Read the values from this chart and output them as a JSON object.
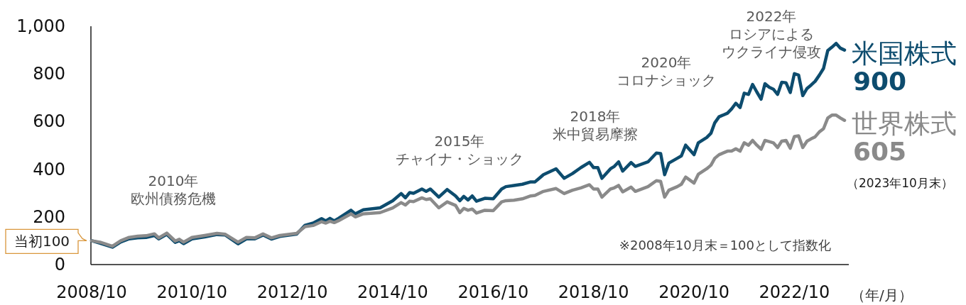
{
  "chart_data": {
    "type": "line",
    "xlabel": "（年/月）",
    "x": [
      "2008-10",
      "2008-12",
      "2009-03",
      "2009-05",
      "2009-07",
      "2009-09",
      "2009-11",
      "2010-01",
      "2010-02",
      "2010-04",
      "2010-06",
      "2010-07",
      "2010-08",
      "2010-10",
      "2011-01",
      "2011-04",
      "2011-06",
      "2011-09",
      "2011-11",
      "2012-01",
      "2012-03",
      "2012-05",
      "2012-07",
      "2012-11",
      "2013-01",
      "2013-03",
      "2013-05",
      "2013-06",
      "2013-07",
      "2013-08",
      "2013-09",
      "2013-12",
      "2014-01",
      "2014-03",
      "2014-07",
      "2014-10",
      "2014-12",
      "2015-01",
      "2015-02",
      "2015-03",
      "2015-05",
      "2015-06",
      "2015-07",
      "2015-09",
      "2015-11",
      "2016-01",
      "2016-02",
      "2016-03",
      "2016-04",
      "2016-05",
      "2016-06",
      "2016-08",
      "2016-10",
      "2016-12",
      "2017-01",
      "2017-03",
      "2017-05",
      "2017-07",
      "2017-08",
      "2017-10",
      "2018-01",
      "2018-03",
      "2018-05",
      "2018-07",
      "2018-09",
      "2018-10",
      "2018-11",
      "2018-12",
      "2019-02",
      "2019-03",
      "2019-04",
      "2019-05",
      "2019-07",
      "2019-08",
      "2019-11",
      "2020-01",
      "2020-02",
      "2020-03",
      "2020-04",
      "2020-06",
      "2020-07",
      "2020-08",
      "2020-10",
      "2020-11",
      "2021-01",
      "2021-02",
      "2021-03",
      "2021-04",
      "2021-06",
      "2021-07",
      "2021-08",
      "2021-09",
      "2021-10",
      "2021-11",
      "2021-12",
      "2022-01",
      "2022-02",
      "2022-03",
      "2022-04",
      "2022-05",
      "2022-06",
      "2022-07",
      "2022-08",
      "2022-09",
      "2022-10",
      "2022-11",
      "2022-12",
      "2023-01",
      "2023-02",
      "2023-03",
      "2023-04",
      "2023-05",
      "2023-06",
      "2023-07",
      "2023-08",
      "2023-09",
      "2023-10"
    ],
    "xlim": [
      "2008-10",
      "2023-11"
    ],
    "xticks": [
      {
        "value": "2008-10",
        "label": "2008/10"
      },
      {
        "value": "2010-10",
        "label": "2010/10"
      },
      {
        "value": "2012-10",
        "label": "2012/10"
      },
      {
        "value": "2014-10",
        "label": "2014/10"
      },
      {
        "value": "2016-10",
        "label": "2016/10"
      },
      {
        "value": "2018-10",
        "label": "2018/10"
      },
      {
        "value": "2020-10",
        "label": "2020/10"
      },
      {
        "value": "2022-10",
        "label": "2022/10"
      }
    ],
    "ylim": [
      0,
      1000
    ],
    "yticks": [
      0,
      200,
      400,
      600,
      800,
      {
        "value": 1000,
        "label": "1,000"
      }
    ],
    "series": [
      {
        "name": "米国株式",
        "color": "#0d4c6e",
        "values": [
          100,
          90,
          73,
          95,
          108,
          112,
          114,
          122,
          108,
          127,
          93,
          100,
          88,
          108,
          116,
          126,
          124,
          87,
          108,
          108,
          124,
          107,
          118,
          128,
          165,
          174,
          193,
          183,
          194,
          183,
          194,
          228,
          213,
          230,
          238,
          268,
          298,
          280,
          302,
          299,
          317,
          307,
          317,
          283,
          315,
          288,
          268,
          286,
          271,
          288,
          266,
          278,
          276,
          317,
          327,
          332,
          337,
          347,
          347,
          377,
          402,
          362,
          382,
          407,
          429,
          407,
          407,
          362,
          402,
          412,
          431,
          392,
          428,
          412,
          431,
          468,
          466,
          377,
          426,
          446,
          456,
          501,
          461,
          511,
          533,
          551,
          595,
          620,
          635,
          653,
          677,
          659,
          719,
          714,
          756,
          724,
          694,
          759,
          744,
          736,
          714,
          765,
          763,
          722,
          801,
          795,
          709,
          739,
          754,
          769,
          795,
          823,
          898,
          912,
          928,
          908,
          900
        ],
        "value_labels": [
          null,
          null,
          null,
          null,
          null,
          null,
          null,
          null,
          null,
          null,
          null,
          null,
          null,
          null,
          null,
          null,
          null,
          null,
          null,
          null,
          null,
          null,
          null,
          null,
          null,
          null,
          null,
          null,
          null,
          null,
          null,
          null,
          null,
          null,
          null,
          null,
          null,
          null,
          null,
          null,
          null,
          null,
          null,
          null,
          null,
          null,
          null,
          null,
          null,
          null,
          null,
          null,
          null,
          null,
          null,
          null,
          null,
          null,
          null,
          null,
          null,
          null,
          null,
          null,
          null,
          null,
          null,
          null,
          null,
          null,
          null,
          null,
          null,
          null,
          null,
          null,
          null,
          null,
          null,
          null,
          null,
          null,
          null,
          null,
          null,
          null,
          null,
          null,
          null,
          null,
          null,
          null,
          null,
          null,
          null,
          null,
          null,
          null,
          null,
          null,
          null,
          null,
          null,
          null,
          null,
          null,
          null,
          null,
          null,
          null,
          null,
          null,
          null,
          null,
          null,
          null,
          "900"
        ]
      },
      {
        "name": "世界株式",
        "color": "#8a8a8a",
        "values": [
          100,
          94,
          77,
          100,
          114,
          119,
          121,
          129,
          112,
          132,
          99,
          106,
          94,
          114,
          122,
          131,
          127,
          94,
          114,
          112,
          129,
          112,
          122,
          131,
          159,
          164,
          180,
          174,
          182,
          176,
          184,
          213,
          200,
          213,
          218,
          238,
          260,
          250,
          266,
          264,
          280,
          273,
          276,
          238,
          263,
          248,
          218,
          236,
          228,
          233,
          216,
          228,
          226,
          263,
          268,
          270,
          276,
          288,
          290,
          307,
          319,
          298,
          312,
          322,
          335,
          317,
          317,
          283,
          317,
          322,
          332,
          305,
          325,
          307,
          327,
          352,
          349,
          283,
          312,
          327,
          337,
          367,
          342,
          379,
          402,
          417,
          446,
          461,
          476,
          476,
          486,
          476,
          511,
          501,
          521,
          501,
          484,
          521,
          516,
          511,
          491,
          518,
          521,
          488,
          537,
          540,
          491,
          518,
          528,
          536,
          557,
          570,
          615,
          627,
          627,
          615,
          605
        ],
        "value_labels": [
          null,
          null,
          null,
          null,
          null,
          null,
          null,
          null,
          null,
          null,
          null,
          null,
          null,
          null,
          null,
          null,
          null,
          null,
          null,
          null,
          null,
          null,
          null,
          null,
          null,
          null,
          null,
          null,
          null,
          null,
          null,
          null,
          null,
          null,
          null,
          null,
          null,
          null,
          null,
          null,
          null,
          null,
          null,
          null,
          null,
          null,
          null,
          null,
          null,
          null,
          null,
          null,
          null,
          null,
          null,
          null,
          null,
          null,
          null,
          null,
          null,
          null,
          null,
          null,
          null,
          null,
          null,
          null,
          null,
          null,
          null,
          null,
          null,
          null,
          null,
          null,
          null,
          null,
          null,
          null,
          null,
          null,
          null,
          null,
          null,
          null,
          null,
          null,
          null,
          null,
          null,
          null,
          null,
          null,
          null,
          null,
          null,
          null,
          null,
          null,
          null,
          null,
          null,
          null,
          null,
          null,
          null,
          null,
          null,
          null,
          null,
          null,
          null,
          null,
          null,
          null,
          "605"
        ]
      }
    ],
    "annotations": [
      {
        "text": "当初100",
        "x": "2008-10",
        "y": 100
      },
      "2010年欧州債務危機",
      "2015年チャイナ・ショック",
      "2018年米中貿易摩擦",
      "2020年コロナショック",
      "2022年ロシアによるウクライナ侵攻",
      "※2008年10月末＝100として指数化",
      "（2023年10月末）"
    ]
  }
}
